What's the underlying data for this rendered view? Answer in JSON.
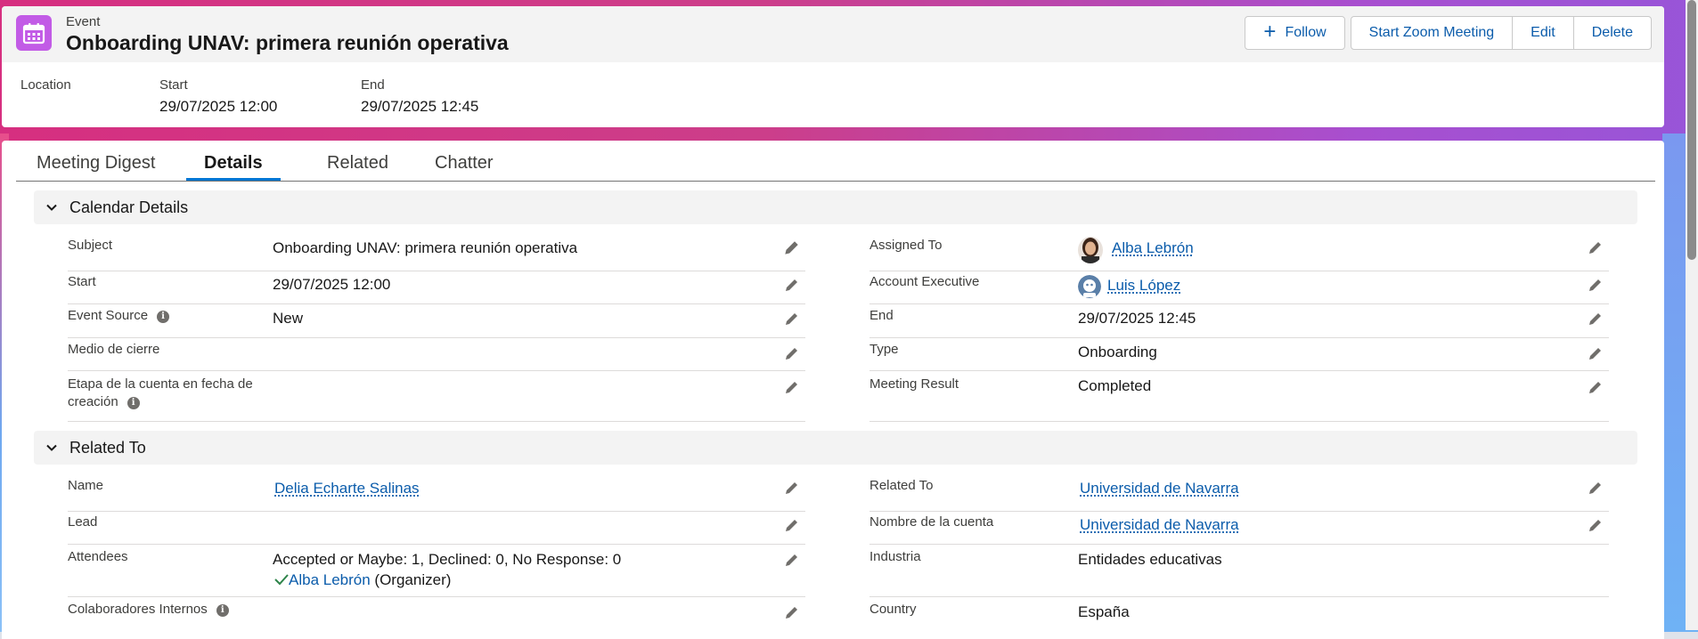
{
  "colors": {
    "accent": "#0176d3",
    "link": "#0b5cab",
    "event_icon": "#c25be6",
    "brand_gradient_start": "#d62f80",
    "brand_gradient_end": "#9855d8"
  },
  "header": {
    "object_label": "Event",
    "title": "Onboarding UNAV: primera reunión operativa",
    "icon": "calendar-icon",
    "buttons": {
      "follow": "Follow",
      "zoom": "Start Zoom Meeting",
      "edit": "Edit",
      "delete": "Delete"
    },
    "highlights": [
      {
        "label": "Location",
        "value": ""
      },
      {
        "label": "Start",
        "value": "29/07/2025 12:00"
      },
      {
        "label": "End",
        "value": "29/07/2025 12:45"
      }
    ]
  },
  "tabs": [
    "Meeting Digest",
    "Details",
    "Related",
    "Chatter"
  ],
  "active_tab": "Details",
  "calendar_details": {
    "title": "Calendar Details",
    "left": [
      {
        "label": "Subject",
        "value": "Onboarding UNAV: primera reunión operativa"
      },
      {
        "label": "Start",
        "value": "29/07/2025 12:00"
      },
      {
        "label": "Event Source",
        "value": "New",
        "info": true
      },
      {
        "label": "Medio de cierre",
        "value": ""
      },
      {
        "label": "Etapa de la cuenta en fecha de",
        "label_line2": "creación",
        "value": "",
        "info": true
      }
    ],
    "right": [
      {
        "label": "Assigned To",
        "value": "Alba Lebrón",
        "link": true
      },
      {
        "label": "Account Executive",
        "value": "Luis López",
        "link": true
      },
      {
        "label": "End",
        "value": "29/07/2025 12:45"
      },
      {
        "label": "Type",
        "value": "Onboarding"
      },
      {
        "label": "Meeting Result",
        "value": "Completed"
      }
    ]
  },
  "related_to": {
    "title": "Related To",
    "left": [
      {
        "label": "Name",
        "value": "Delia Echarte Salinas",
        "link": true
      },
      {
        "label": "Lead",
        "value": ""
      },
      {
        "label": "Attendees",
        "value": "Accepted or Maybe: 1, Declined: 0, No Response: 0",
        "attendee_name": "Alba Lebrón",
        "attendee_role": "(Organizer)"
      },
      {
        "label": "Colaboradores Internos",
        "value": "",
        "info": true
      }
    ],
    "right": [
      {
        "label": "Related To",
        "value": "Universidad de Navarra",
        "link": true
      },
      {
        "label": "Nombre de la cuenta",
        "value": "Universidad de Navarra",
        "link": true
      },
      {
        "label": "Industria",
        "value": "Entidades educativas"
      },
      {
        "label": "Country",
        "value": "España"
      }
    ]
  }
}
